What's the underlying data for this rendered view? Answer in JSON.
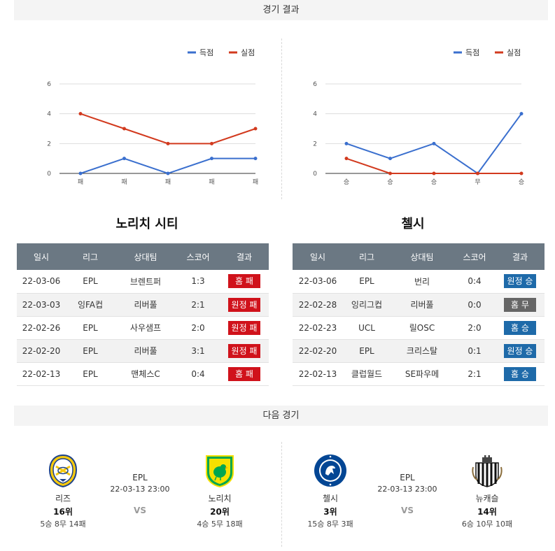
{
  "sections": {
    "results_title": "경기 결과",
    "next_title": "다음 경기"
  },
  "legend": {
    "scored": "득점",
    "conceded": "실점"
  },
  "colors": {
    "scored": "#3a6fce",
    "conceded": "#d23a1e",
    "header_bg": "#6b7883",
    "win": "#1e6aa9",
    "loss": "#d0121b",
    "draw": "#666666"
  },
  "chart_data": [
    {
      "type": "line",
      "x": [
        "패",
        "패",
        "패",
        "패",
        "패"
      ],
      "series": [
        {
          "name": "득점",
          "values": [
            0,
            1,
            0,
            1,
            1
          ]
        },
        {
          "name": "실점",
          "values": [
            4,
            3,
            2,
            2,
            3
          ]
        }
      ],
      "ylim": [
        0,
        6
      ],
      "yticks": [
        "0",
        "2",
        "4",
        "6"
      ],
      "legend_position": "top-right",
      "grid": true
    },
    {
      "type": "line",
      "x": [
        "승",
        "승",
        "승",
        "무",
        "승"
      ],
      "series": [
        {
          "name": "득점",
          "values": [
            2,
            1,
            2,
            0,
            4
          ]
        },
        {
          "name": "실점",
          "values": [
            1,
            0,
            0,
            0,
            0
          ]
        }
      ],
      "ylim": [
        0,
        6
      ],
      "yticks": [
        "0",
        "2",
        "4",
        "6"
      ],
      "legend_position": "top-right",
      "grid": true
    }
  ],
  "headers": [
    "일시",
    "리그",
    "상대팀",
    "스코어",
    "결과"
  ],
  "teams": [
    {
      "title": "노리치 시티",
      "rows": [
        {
          "date": "22-03-06",
          "league": "EPL",
          "opponent": "브렌트퍼",
          "score": "1:3",
          "result": "홈 패",
          "kind": "loss"
        },
        {
          "date": "22-03-03",
          "league": "잉FA컵",
          "opponent": "리버풀",
          "score": "2:1",
          "result": "원정 패",
          "kind": "loss"
        },
        {
          "date": "22-02-26",
          "league": "EPL",
          "opponent": "사우샘프",
          "score": "2:0",
          "result": "원정 패",
          "kind": "loss"
        },
        {
          "date": "22-02-20",
          "league": "EPL",
          "opponent": "리버풀",
          "score": "3:1",
          "result": "원정 패",
          "kind": "loss"
        },
        {
          "date": "22-02-13",
          "league": "EPL",
          "opponent": "맨체스C",
          "score": "0:4",
          "result": "홈 패",
          "kind": "loss"
        }
      ]
    },
    {
      "title": "첼시",
      "rows": [
        {
          "date": "22-03-06",
          "league": "EPL",
          "opponent": "번리",
          "score": "0:4",
          "result": "원정 승",
          "kind": "win"
        },
        {
          "date": "22-02-28",
          "league": "잉리그컵",
          "opponent": "리버풀",
          "score": "0:0",
          "result": "홈 무",
          "kind": "draw"
        },
        {
          "date": "22-02-23",
          "league": "UCL",
          "opponent": "릴OSC",
          "score": "2:0",
          "result": "홈 승",
          "kind": "win"
        },
        {
          "date": "22-02-20",
          "league": "EPL",
          "opponent": "크리스탈",
          "score": "0:1",
          "result": "원정 승",
          "kind": "win"
        },
        {
          "date": "22-02-13",
          "league": "클럽월드",
          "opponent": "SE파우메",
          "score": "2:1",
          "result": "홈 승",
          "kind": "win"
        }
      ]
    }
  ],
  "next_matches": [
    {
      "league": "EPL",
      "datetime": "22-03-13 23:00",
      "vs": "VS",
      "home": {
        "name": "리즈",
        "rank": "16위",
        "record": "5승 8무 14패",
        "crest": "leeds-crest"
      },
      "away": {
        "name": "노리치",
        "rank": "20위",
        "record": "4승 5무 18패",
        "crest": "norwich-crest"
      }
    },
    {
      "league": "EPL",
      "datetime": "22-03-13 23:00",
      "vs": "VS",
      "home": {
        "name": "첼시",
        "rank": "3위",
        "record": "15승 8무 3패",
        "crest": "chelsea-crest"
      },
      "away": {
        "name": "뉴캐슬",
        "rank": "14위",
        "record": "6승 10무 10패",
        "crest": "newcastle-crest"
      }
    }
  ]
}
